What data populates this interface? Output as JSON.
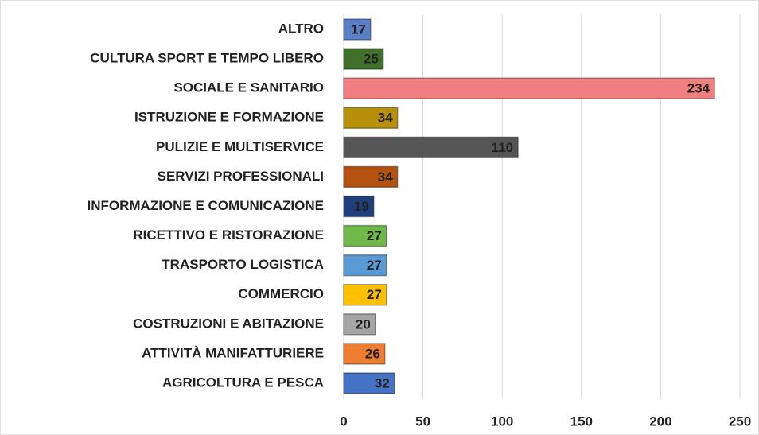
{
  "chart_data": {
    "type": "hbar",
    "categories": [
      "ALTRO",
      "CULTURA SPORT E TEMPO LIBERO",
      "SOCIALE E SANITARIO",
      "ISTRUZIONE E FORMAZIONE",
      "PULIZIE E MULTISERVICE",
      "SERVIZI PROFESSIONALI",
      "INFORMAZIONE E COMUNICAZIONE",
      "RICETTIVO E RISTORAZIONE",
      "TRASPORTO LOGISTICA",
      "COMMERCIO",
      "COSTRUZIONI E ABITAZIONE",
      "ATTIVITÀ MANIFATTURIERE",
      "AGRICOLTURA E PESCA"
    ],
    "values": [
      17,
      25,
      234,
      34,
      110,
      34,
      19,
      27,
      27,
      27,
      20,
      26,
      32
    ],
    "colors": [
      "#5b7fc7",
      "#3f6f2a",
      "#f08080",
      "#b8900a",
      "#555555",
      "#b5520f",
      "#1f3f7a",
      "#6fb84a",
      "#5b9bd5",
      "#ffc000",
      "#a5a5a5",
      "#ed7d31",
      "#4472c4"
    ],
    "xlim": [
      0,
      250
    ],
    "xticks": [
      0,
      50,
      100,
      150,
      200,
      250
    ],
    "grid": true
  }
}
